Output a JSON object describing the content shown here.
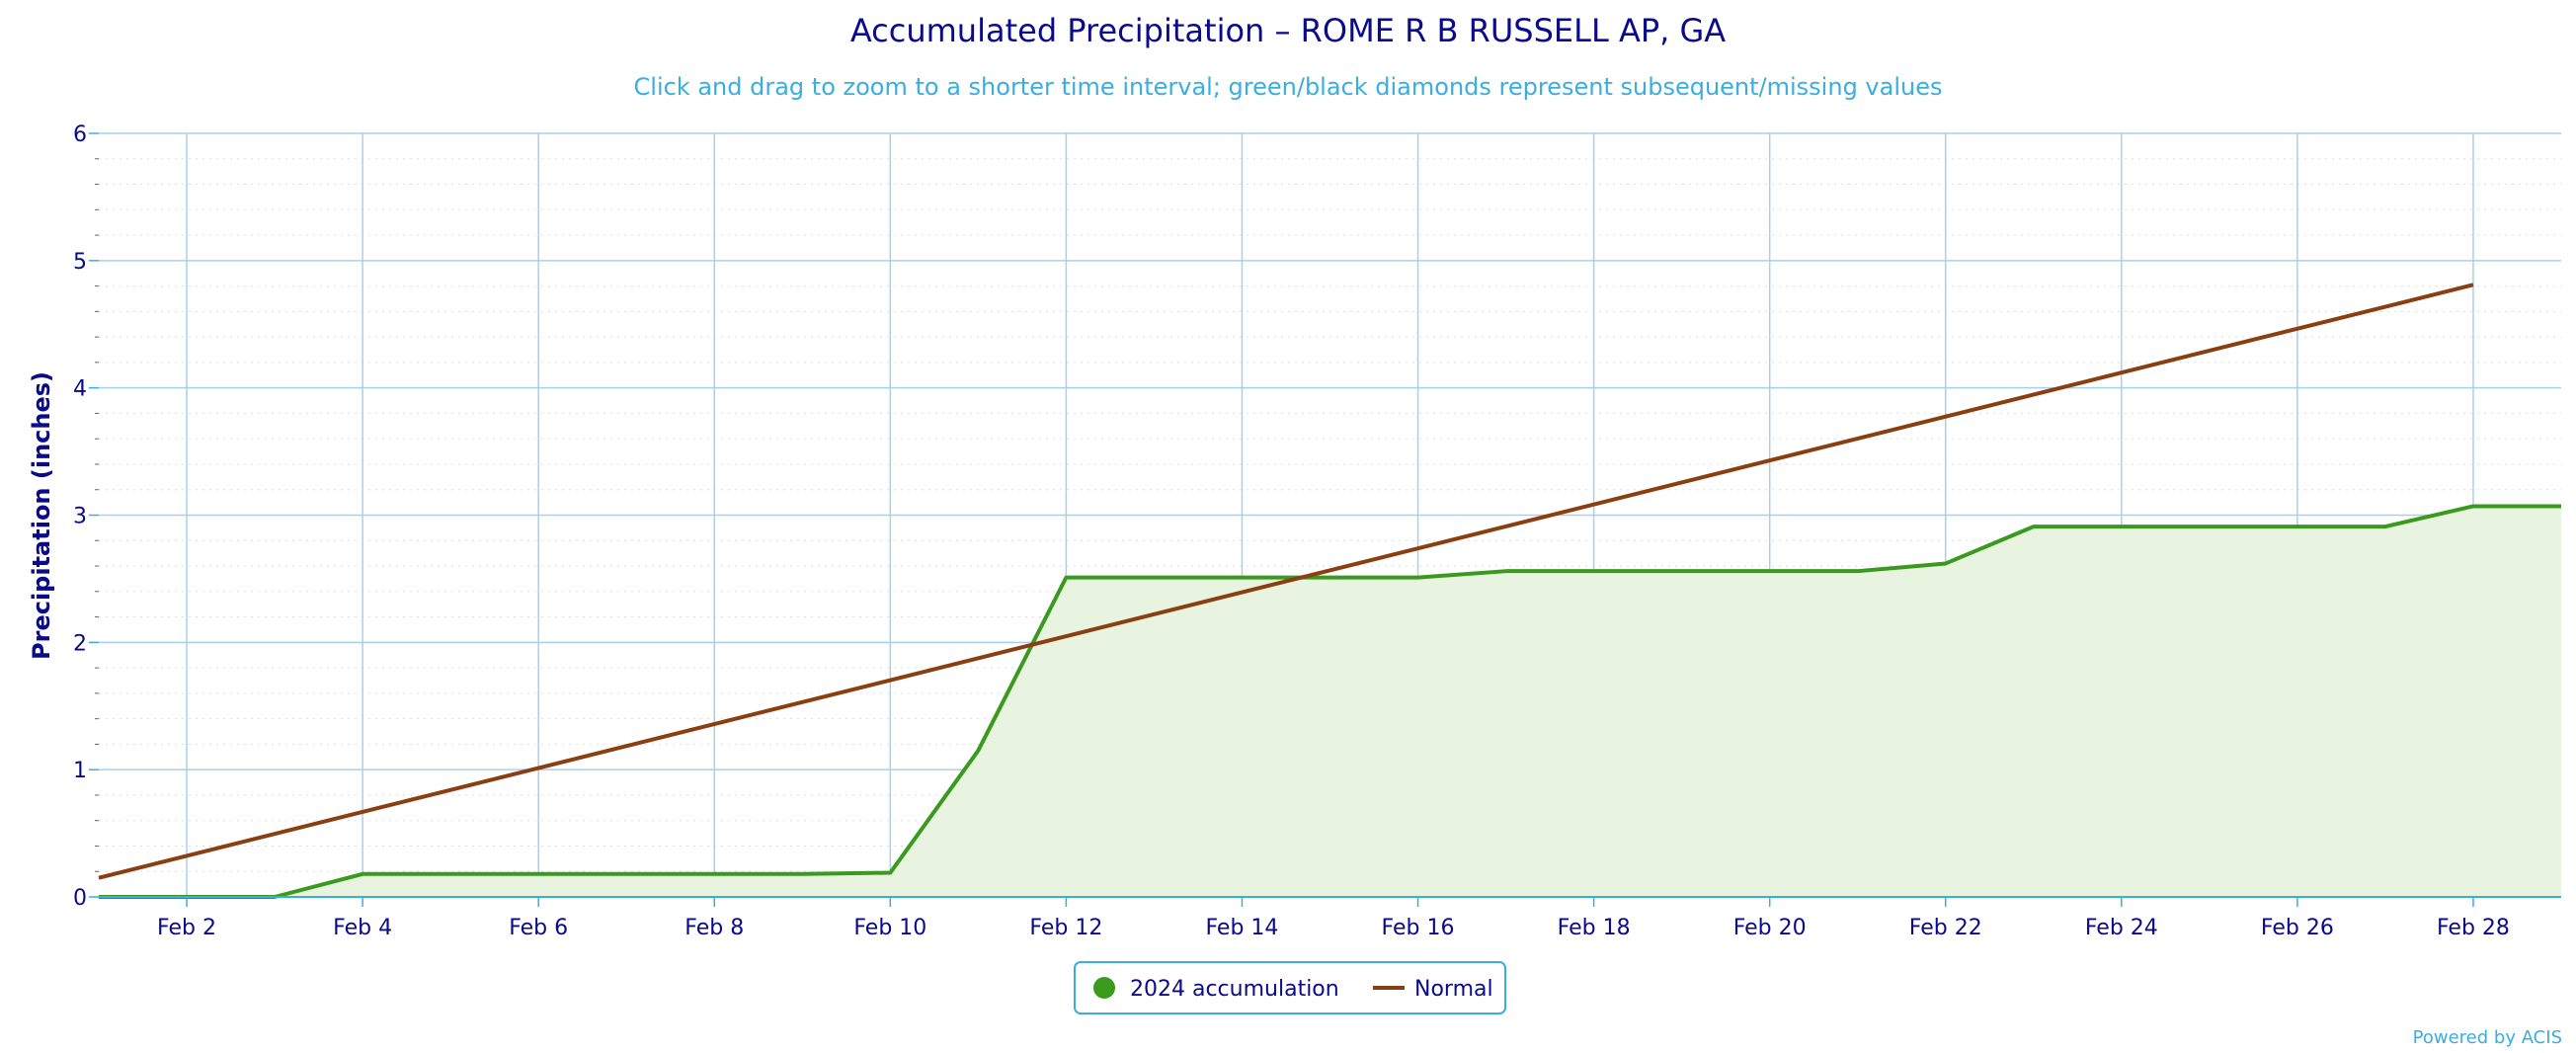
{
  "chart_data": {
    "type": "line",
    "title": "Accumulated Precipitation – ROME R B RUSSELL AP, GA",
    "subtitle": "Click and drag to zoom to a shorter time interval; green/black diamonds represent subsequent/missing values",
    "xlabel": "",
    "ylabel": "Precipitation (inches)",
    "ylim": [
      0,
      6
    ],
    "y_ticks": [
      "0",
      "1",
      "2",
      "3",
      "4",
      "5",
      "6"
    ],
    "x_tick_labels": [
      "Feb 2",
      "Feb 4",
      "Feb 6",
      "Feb 8",
      "Feb 10",
      "Feb 12",
      "Feb 14",
      "Feb 16",
      "Feb 18",
      "Feb 20",
      "Feb 22",
      "Feb 24",
      "Feb 26",
      "Feb 28"
    ],
    "x_tick_days": [
      2,
      4,
      6,
      8,
      10,
      12,
      14,
      16,
      18,
      20,
      22,
      24,
      26,
      28
    ],
    "xlim": [
      1,
      29
    ],
    "grid": true,
    "legend_position": "bottom-center",
    "series": [
      {
        "name": "2024 accumulation",
        "color": "#3a9a1e",
        "fill": "#e8f4e0",
        "x": [
          1,
          2,
          3,
          4,
          5,
          6,
          7,
          8,
          9,
          10,
          11,
          12,
          13,
          14,
          15,
          16,
          17,
          18,
          19,
          20,
          21,
          22,
          23,
          24,
          25,
          26,
          27,
          28,
          29
        ],
        "values": [
          0,
          0,
          0,
          0.18,
          0.18,
          0.18,
          0.18,
          0.18,
          0.18,
          0.19,
          1.15,
          2.51,
          2.51,
          2.51,
          2.51,
          2.51,
          2.56,
          2.56,
          2.56,
          2.56,
          2.56,
          2.62,
          2.91,
          2.91,
          2.91,
          2.91,
          2.91,
          3.07,
          3.07
        ]
      },
      {
        "name": "Normal",
        "color": "#8b3e12",
        "x": [
          1,
          28
        ],
        "values": [
          0.15,
          4.81
        ]
      }
    ]
  },
  "credit": "Powered by ACIS"
}
